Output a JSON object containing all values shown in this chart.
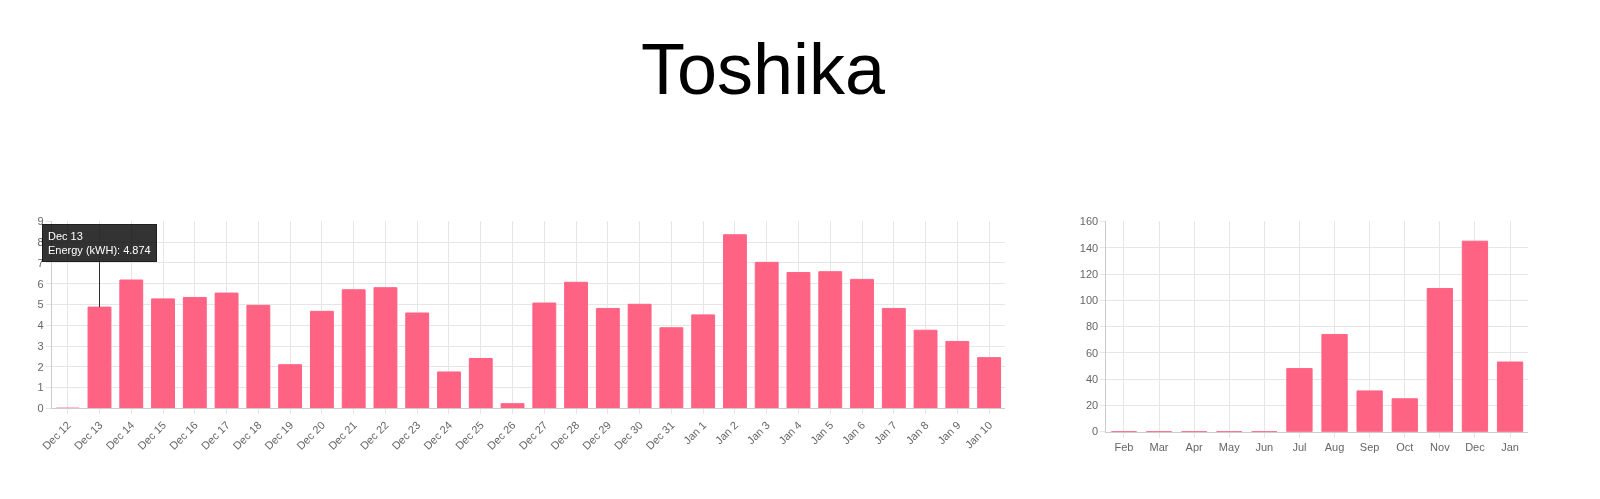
{
  "chart_data": [
    {
      "type": "bar",
      "title": "Toshika",
      "categories": [
        "Dec 12",
        "Dec 13",
        "Dec 14",
        "Dec 15",
        "Dec 16",
        "Dec 17",
        "Dec 18",
        "Dec 19",
        "Dec 20",
        "Dec 21",
        "Dec 22",
        "Dec 23",
        "Dec 24",
        "Dec 25",
        "Dec 26",
        "Dec 27",
        "Dec 28",
        "Dec 29",
        "Dec 30",
        "Dec 31",
        "Jan 1",
        "Jan 2",
        "Jan 3",
        "Jan 4",
        "Jan 5",
        "Jan 6",
        "Jan 7",
        "Jan 8",
        "Jan 9",
        "Jan 10"
      ],
      "series": [
        {
          "color": "#ff6384",
          "values": [
            0,
            4.874,
            6.18,
            5.27,
            5.34,
            5.55,
            4.96,
            2.1,
            4.67,
            5.71,
            5.81,
            4.59,
            1.75,
            2.4,
            0.22,
            5.07,
            6.07,
            4.81,
            5.01,
            3.88,
            4.5,
            8.36,
            7.03,
            6.54,
            6.58,
            6.21,
            4.81,
            3.76,
            3.22,
            2.44
          ]
        }
      ],
      "ylim": [
        0,
        9
      ],
      "yticks": [
        0,
        1,
        2,
        3,
        4,
        5,
        6,
        7,
        8,
        9
      ],
      "grid": true,
      "annotations": [
        {
          "text": "Dec 13\nEnergy (kWH): 4.874",
          "x": "Dec 13",
          "y": 4.874
        }
      ]
    },
    {
      "type": "bar",
      "categories": [
        "Feb",
        "Mar",
        "Apr",
        "May",
        "Jun",
        "Jul",
        "Aug",
        "Sep",
        "Oct",
        "Nov",
        "Dec",
        "Jan"
      ],
      "series": [
        {
          "color": "#ff6384",
          "values": [
            0,
            0,
            0,
            0,
            0,
            48,
            74,
            31,
            25,
            109,
            145,
            53
          ]
        }
      ],
      "ylim": [
        0,
        160
      ],
      "yticks": [
        0,
        20,
        40,
        60,
        80,
        100,
        120,
        140,
        160
      ],
      "grid": true
    }
  ]
}
